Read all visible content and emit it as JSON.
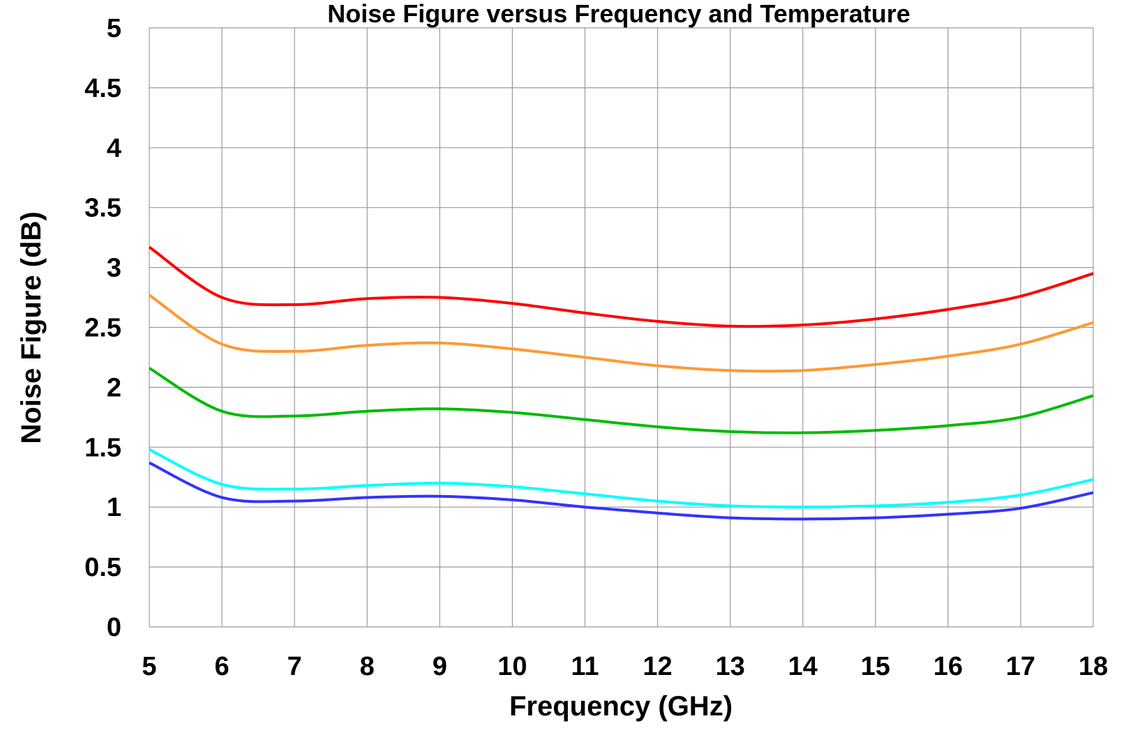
{
  "chart_data": {
    "type": "line",
    "title": "Noise Figure versus Frequency and Temperature",
    "xlabel": "Frequency (GHz)",
    "ylabel": "Noise Figure (dB)",
    "xlim": [
      5,
      18
    ],
    "ylim": [
      0,
      5
    ],
    "xticks": [
      "5",
      "6",
      "7",
      "8",
      "9",
      "10",
      "11",
      "12",
      "13",
      "14",
      "15",
      "16",
      "17",
      "18"
    ],
    "yticks": [
      "0",
      "0.5",
      "1",
      "1.5",
      "2",
      "2.5",
      "3",
      "3.5",
      "4",
      "4.5",
      "5"
    ],
    "grid": true,
    "legend": "none",
    "x": [
      5,
      6,
      7,
      8,
      9,
      10,
      11,
      12,
      13,
      14,
      15,
      16,
      17,
      18
    ],
    "series": [
      {
        "color": "#ff0000",
        "values": [
          3.17,
          2.75,
          2.69,
          2.74,
          2.75,
          2.7,
          2.62,
          2.55,
          2.51,
          2.52,
          2.57,
          2.65,
          2.76,
          2.95
        ]
      },
      {
        "color": "#ff9933",
        "values": [
          2.77,
          2.36,
          2.3,
          2.35,
          2.37,
          2.32,
          2.25,
          2.18,
          2.14,
          2.14,
          2.19,
          2.26,
          2.36,
          2.54
        ]
      },
      {
        "color": "#00bb00",
        "values": [
          2.16,
          1.8,
          1.76,
          1.8,
          1.82,
          1.79,
          1.73,
          1.67,
          1.63,
          1.62,
          1.64,
          1.68,
          1.75,
          1.93
        ]
      },
      {
        "color": "#00ffff",
        "values": [
          1.48,
          1.19,
          1.15,
          1.18,
          1.2,
          1.17,
          1.11,
          1.05,
          1.01,
          1.0,
          1.01,
          1.04,
          1.1,
          1.23
        ]
      },
      {
        "color": "#3333ff",
        "values": [
          1.37,
          1.08,
          1.05,
          1.08,
          1.09,
          1.06,
          1.0,
          0.95,
          0.91,
          0.9,
          0.91,
          0.94,
          0.99,
          1.12
        ]
      }
    ]
  }
}
